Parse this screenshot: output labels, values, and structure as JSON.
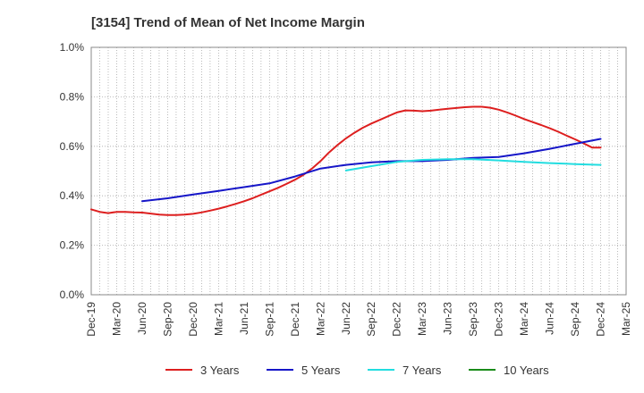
{
  "chart_data": {
    "type": "line",
    "title": "[3154]  Trend of Mean of Net Income Margin",
    "xlabel": "",
    "ylabel": "",
    "x_ticks": [
      "Dec-19",
      "Mar-20",
      "Jun-20",
      "Sep-20",
      "Dec-20",
      "Mar-21",
      "Jun-21",
      "Sep-21",
      "Dec-21",
      "Mar-22",
      "Jun-22",
      "Sep-22",
      "Dec-22",
      "Mar-23",
      "Jun-23",
      "Sep-23",
      "Dec-23",
      "Mar-24",
      "Jun-24",
      "Sep-24",
      "Dec-24",
      "Mar-25"
    ],
    "y_ticks": [
      "0.0%",
      "0.2%",
      "0.4%",
      "0.6%",
      "0.8%",
      "1.0%"
    ],
    "ylim": [
      0,
      1.0
    ],
    "grid": true,
    "legend_position": "bottom",
    "series": [
      {
        "name": "3 Years",
        "color": "#dd1f1f",
        "x": [
          "2019-12",
          "2020-01",
          "2020-02",
          "2020-03",
          "2020-04",
          "2020-05",
          "2020-06",
          "2020-07",
          "2020-08",
          "2020-09",
          "2020-10",
          "2020-11",
          "2020-12",
          "2021-01",
          "2021-02",
          "2021-03",
          "2021-04",
          "2021-05",
          "2021-06",
          "2021-07",
          "2021-08",
          "2021-09",
          "2021-10",
          "2021-11",
          "2021-12",
          "2022-01",
          "2022-02",
          "2022-03",
          "2022-04",
          "2022-05",
          "2022-06",
          "2022-07",
          "2022-08",
          "2022-09",
          "2022-10",
          "2022-11",
          "2022-12",
          "2023-01",
          "2023-02",
          "2023-03",
          "2023-04",
          "2023-05",
          "2023-06",
          "2023-07",
          "2023-08",
          "2023-09",
          "2023-10",
          "2023-11",
          "2023-12",
          "2024-01",
          "2024-02",
          "2024-03",
          "2024-04",
          "2024-05",
          "2024-06",
          "2024-07",
          "2024-08",
          "2024-09",
          "2024-10",
          "2024-11",
          "2024-12"
        ],
        "values": [
          0.345,
          0.335,
          0.33,
          0.335,
          0.335,
          0.333,
          0.332,
          0.328,
          0.324,
          0.322,
          0.322,
          0.324,
          0.327,
          0.333,
          0.34,
          0.348,
          0.357,
          0.367,
          0.378,
          0.39,
          0.404,
          0.418,
          0.432,
          0.448,
          0.465,
          0.485,
          0.51,
          0.54,
          0.575,
          0.605,
          0.632,
          0.655,
          0.675,
          0.692,
          0.707,
          0.722,
          0.737,
          0.745,
          0.744,
          0.742,
          0.744,
          0.748,
          0.752,
          0.755,
          0.758,
          0.76,
          0.76,
          0.756,
          0.748,
          0.737,
          0.724,
          0.71,
          0.698,
          0.686,
          0.673,
          0.659,
          0.643,
          0.628,
          0.612,
          0.595,
          0.595
        ]
      },
      {
        "name": "5 Years",
        "color": "#1616c8",
        "x": [
          "2020-06",
          "2020-09",
          "2020-12",
          "2021-03",
          "2021-06",
          "2021-09",
          "2021-12",
          "2022-03",
          "2022-06",
          "2022-09",
          "2022-12",
          "2023-03",
          "2023-06",
          "2023-09",
          "2023-12",
          "2024-03",
          "2024-06",
          "2024-09",
          "2024-12"
        ],
        "values": [
          0.378,
          0.39,
          0.405,
          0.42,
          0.435,
          0.45,
          0.478,
          0.51,
          0.525,
          0.535,
          0.54,
          0.54,
          0.545,
          0.553,
          0.557,
          0.572,
          0.59,
          0.61,
          0.63
        ]
      },
      {
        "name": "7 Years",
        "color": "#22dde0",
        "x": [
          "2022-06",
          "2022-09",
          "2022-12",
          "2023-03",
          "2023-06",
          "2023-09",
          "2023-12",
          "2024-03",
          "2024-06",
          "2024-09",
          "2024-12"
        ],
        "values": [
          0.502,
          0.52,
          0.537,
          0.545,
          0.548,
          0.548,
          0.543,
          0.537,
          0.532,
          0.528,
          0.525
        ]
      },
      {
        "name": "10 Years",
        "color": "#1a8c1a",
        "x": [],
        "values": []
      }
    ]
  }
}
